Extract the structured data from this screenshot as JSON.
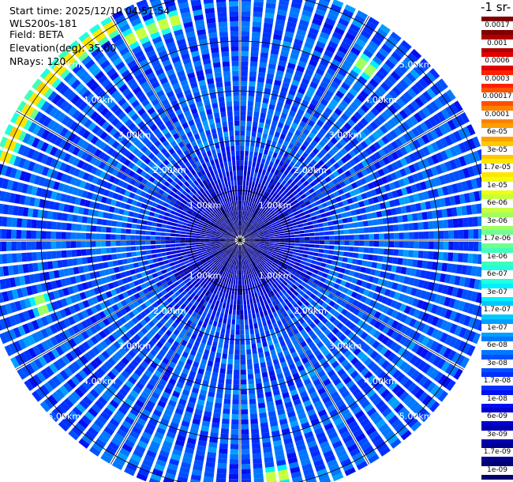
{
  "header": {
    "start_time": "Start time: 2025/12/10 04:51:54",
    "instrument": "WLS200s-181",
    "field": "Field: BETA",
    "elevation": "Elevation(deg): 35.00",
    "nrays": "NRays: 120"
  },
  "colorbar": {
    "title": "-1 sr-",
    "labels": [
      "0.0017",
      "0.001",
      "0.0006",
      "0.0003",
      "0.00017",
      "0.0001",
      "6e-05",
      "3e-05",
      "1.7e-05",
      "1e-05",
      "6e-06",
      "3e-06",
      "1.7e-06",
      "1e-06",
      "6e-07",
      "3e-07",
      "1.7e-07",
      "1e-07",
      "6e-08",
      "3e-08",
      "1.7e-08",
      "1e-08",
      "6e-09",
      "3e-09",
      "1.7e-09",
      "1e-09"
    ],
    "colors": [
      "#800000",
      "#b00000",
      "#e00000",
      "#ff2000",
      "#ff5000",
      "#ff8000",
      "#ffa000",
      "#ffc800",
      "#ffe600",
      "#f0ff10",
      "#c8ff40",
      "#a0ff60",
      "#70ff90",
      "#40ffb8",
      "#20ffe0",
      "#00f0ff",
      "#00c8ff",
      "#00a0ff",
      "#0078ff",
      "#0050ff",
      "#0030ff",
      "#0010f0",
      "#0000d0",
      "#0000b0",
      "#000090",
      "#000070"
    ]
  },
  "chart_data": {
    "type": "heatmap",
    "projection": "polar",
    "field": "BETA",
    "elevation_deg": 35.0,
    "n_rays": 120,
    "range_unit": "km",
    "max_range_km": 5.2,
    "range_rings_km": [
      1,
      2,
      3,
      4,
      5
    ],
    "ring_labels": [
      "1.00km",
      "2.00km",
      "3.00km",
      "4.00km",
      "5.00km"
    ],
    "radial_lines_deg": [
      0,
      30,
      60,
      90,
      120,
      150,
      180,
      210,
      240,
      270,
      300,
      330
    ],
    "colormap": "jet",
    "color_scale": "log",
    "value_range": [
      1e-09,
      0.0017
    ],
    "background_level": 3e-08,
    "bright_features": [
      {
        "azimuth_deg_range": [
          290,
          330
        ],
        "range_km": 5.0,
        "level": 0.0001
      },
      {
        "azimuth_deg_range": [
          330,
          345
        ],
        "range_km": 4.6,
        "level": 1.7e-05
      },
      {
        "azimuth_deg_range": [
          352,
          357
        ],
        "range_km": 5.4,
        "level": 1e-05
      },
      {
        "azimuth_deg_range": [
          35,
          38
        ],
        "range_km": 4.3,
        "level": 1e-05
      },
      {
        "azimuth_deg_range": [
          251,
          255
        ],
        "range_km": 4.2,
        "level": 1e-05
      },
      {
        "azimuth_deg_range": [
          168,
          174
        ],
        "range_km": 4.8,
        "level": 1.7e-05
      }
    ]
  }
}
